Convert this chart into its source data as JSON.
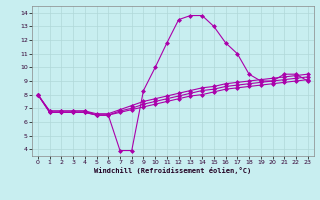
{
  "title": "",
  "xlabel": "Windchill (Refroidissement éolien,°C)",
  "ylabel": "",
  "xlim": [
    -0.5,
    23.5
  ],
  "ylim": [
    3.5,
    14.5
  ],
  "yticks": [
    4,
    5,
    6,
    7,
    8,
    9,
    10,
    11,
    12,
    13,
    14
  ],
  "xticks": [
    0,
    1,
    2,
    3,
    4,
    5,
    6,
    7,
    8,
    9,
    10,
    11,
    12,
    13,
    14,
    15,
    16,
    17,
    18,
    19,
    20,
    21,
    22,
    23
  ],
  "bg_color": "#c8eef0",
  "grid_color": "#b0d8d8",
  "line_color": "#aa00aa",
  "line_width": 0.8,
  "marker": "D",
  "marker_size": 2.0,
  "series": [
    [
      8.0,
      6.7,
      6.7,
      6.7,
      6.7,
      6.5,
      6.5,
      3.9,
      3.9,
      8.3,
      10.0,
      11.8,
      13.5,
      13.8,
      13.8,
      13.0,
      11.8,
      11.0,
      9.5,
      9.0,
      9.0,
      9.5,
      9.5,
      9.0
    ],
    [
      8.0,
      6.8,
      6.8,
      6.8,
      6.8,
      6.6,
      6.6,
      6.9,
      7.2,
      7.5,
      7.7,
      7.9,
      8.1,
      8.3,
      8.5,
      8.6,
      8.8,
      8.9,
      9.0,
      9.1,
      9.2,
      9.3,
      9.4,
      9.5
    ],
    [
      8.0,
      6.7,
      6.7,
      6.7,
      6.7,
      6.5,
      6.5,
      6.8,
      7.0,
      7.3,
      7.5,
      7.7,
      7.9,
      8.1,
      8.3,
      8.4,
      8.6,
      8.7,
      8.8,
      8.9,
      9.0,
      9.1,
      9.2,
      9.3
    ],
    [
      8.0,
      6.8,
      6.8,
      6.8,
      6.8,
      6.5,
      6.5,
      6.7,
      6.9,
      7.1,
      7.3,
      7.5,
      7.7,
      7.9,
      8.0,
      8.2,
      8.4,
      8.5,
      8.6,
      8.7,
      8.8,
      8.9,
      9.0,
      9.1
    ]
  ]
}
